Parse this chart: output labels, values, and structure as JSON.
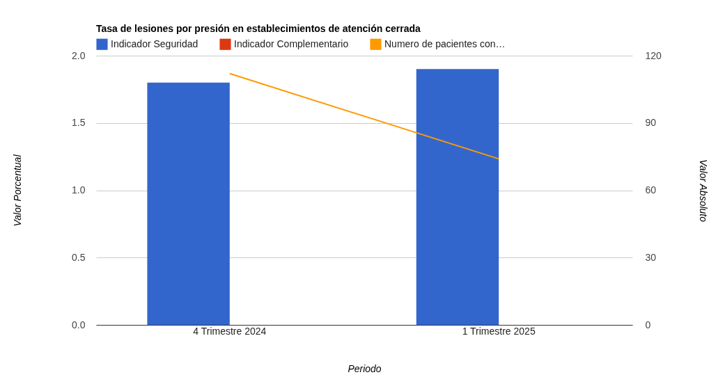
{
  "chart_data": {
    "type": "bar",
    "title": "Tasa de lesiones por presión en establecimientos de atención cerrada",
    "categories": [
      "4 Trimestre 2024",
      "1 Trimestre 2025"
    ],
    "series": [
      {
        "name": "Indicador Seguridad",
        "color": "#3366cc",
        "values": [
          1.8,
          1.9
        ]
      },
      {
        "name": "Indicador Complementario",
        "color": "#dc3912",
        "values": [
          0,
          0
        ]
      },
      {
        "name": "Numero de pacientes con…",
        "type": "line",
        "axis": "y2",
        "color": "#ff9900",
        "values": [
          112,
          74
        ]
      }
    ],
    "xlabel": "Periodo",
    "ylabel": "Valor Porcentual",
    "y2label": "Valor Absoluto",
    "ylim": [
      0,
      2
    ],
    "yticks": [
      {
        "value": 0,
        "label": "0.0"
      },
      {
        "value": 0.5,
        "label": "0.5"
      },
      {
        "value": 1,
        "label": "1.0"
      },
      {
        "value": 1.5,
        "label": "1.5"
      },
      {
        "value": 2,
        "label": "2.0"
      }
    ],
    "y2lim": [
      0,
      120
    ],
    "y2ticks": [
      0,
      30,
      60,
      90,
      120
    ],
    "grid": "y",
    "legend": "top"
  }
}
